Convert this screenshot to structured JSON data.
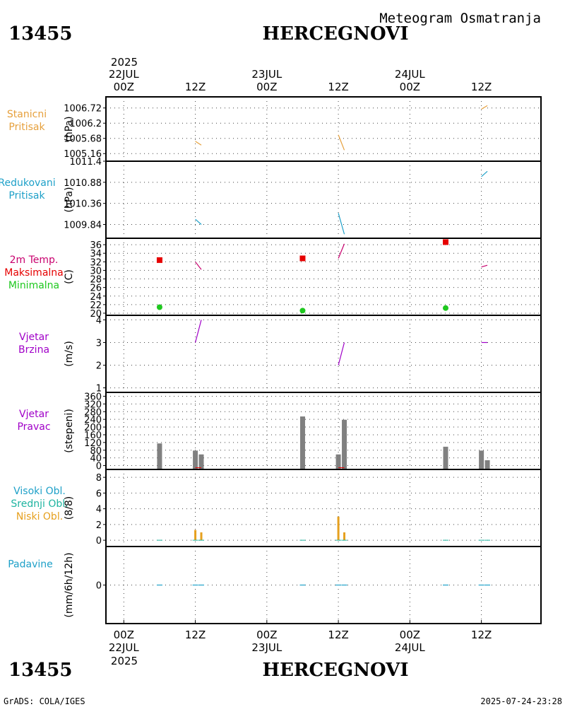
{
  "header": {
    "station_id": "13455",
    "station_name": "HERCEGNOVI",
    "title": "Meteogram Osmatranja"
  },
  "footer": {
    "station_id": "13455",
    "station_name": "HERCEGNOVI",
    "credit": "GrADS: COLA/IGES",
    "timestamp": "2025-07-24-23:28"
  },
  "time_axis": {
    "top_year": "2025",
    "bottom_year": "2025",
    "ticks": [
      {
        "hour": 0,
        "label": "00Z",
        "date": "22JUL"
      },
      {
        "hour": 12,
        "label": "12Z",
        "date": ""
      },
      {
        "hour": 24,
        "label": "00Z",
        "date": "23JUL"
      },
      {
        "hour": 36,
        "label": "12Z",
        "date": ""
      },
      {
        "hour": 48,
        "label": "00Z",
        "date": "24JUL"
      },
      {
        "hour": 60,
        "label": "12Z",
        "date": ""
      }
    ],
    "range_hours": [
      -3,
      70
    ]
  },
  "colors": {
    "station_pressure": "#e6a03c",
    "reduced_pressure": "#1ea0c8",
    "temp_label": "#c8006e",
    "tmax": "#e60000",
    "tmin": "#1ec81e",
    "wind": "#a000c8",
    "wind_dir_bar": "#808080",
    "high_cloud": "#1ea0c8",
    "mid_cloud": "#1eb4a0",
    "low_cloud": "#e6a01e",
    "precip": "#1ea0c8"
  },
  "chart_data": [
    {
      "id": "station_pressure",
      "type": "line",
      "labels": [
        "Stanicni",
        "Pritisak"
      ],
      "ylabel": "(hPa)",
      "ylim": [
        1004.9,
        1007.1
      ],
      "ticks": [
        1006.72,
        1006.2,
        1005.68,
        1005.16
      ],
      "tick_labels": [
        "1006.72",
        "1006.2",
        "1005.68",
        "1005.16"
      ],
      "segments": [
        {
          "x": [
            12,
            13
          ],
          "y": [
            1005.58,
            1005.45
          ]
        },
        {
          "x": [
            36,
            37
          ],
          "y": [
            1005.8,
            1005.28
          ]
        },
        {
          "x": [
            60,
            61
          ],
          "y": [
            1006.68,
            1006.8
          ]
        }
      ]
    },
    {
      "id": "reduced_pressure",
      "type": "line",
      "labels": [
        "Redukovani",
        "Pritisak"
      ],
      "ylabel": "(hPa)",
      "ylim": [
        1009.5,
        1011.4
      ],
      "ticks": [
        1011.4,
        1010.88,
        1010.36,
        1009.84
      ],
      "tick_labels": [
        "1011.4",
        "1010.88",
        "1010.36",
        "1009.84"
      ],
      "segments": [
        {
          "x": [
            12,
            13
          ],
          "y": [
            1009.97,
            1009.84
          ]
        },
        {
          "x": [
            36,
            37
          ],
          "y": [
            1010.12,
            1009.6
          ]
        },
        {
          "x": [
            60,
            61
          ],
          "y": [
            1011.02,
            1011.15
          ]
        }
      ]
    },
    {
      "id": "temperature",
      "type": "scatter",
      "labels": [
        "2m Temp.",
        "Maksimalna",
        "Minimalna"
      ],
      "ylabel": "(C)",
      "ylim": [
        19.5,
        37.5
      ],
      "ticks": [
        20,
        22,
        24,
        26,
        28,
        30,
        32,
        34,
        36
      ],
      "tick_labels": [
        "20",
        "22",
        "24",
        "26",
        "28",
        "30",
        "32",
        "34",
        "36"
      ],
      "tmax": {
        "x": [
          6,
          30,
          54
        ],
        "y": [
          32.4,
          32.8,
          36.6
        ]
      },
      "tmin": {
        "x": [
          6,
          30,
          54
        ],
        "y": [
          21.4,
          20.6,
          21.2
        ]
      },
      "segments": [
        {
          "x": [
            12,
            13
          ],
          "y": [
            32,
            30.2
          ]
        },
        {
          "x": [
            36,
            37
          ],
          "y": [
            32.8,
            36.2
          ]
        },
        {
          "x": [
            60,
            61
          ],
          "y": [
            30.8,
            31.2
          ]
        }
      ]
    },
    {
      "id": "wind_speed",
      "type": "line",
      "labels": [
        "Vjetar",
        "Brzina"
      ],
      "ylabel": "(m/s)",
      "ylim": [
        0.8,
        4.2
      ],
      "ticks": [
        1,
        2,
        3,
        4
      ],
      "tick_labels": [
        "1",
        "2",
        "3",
        "4"
      ],
      "segments": [
        {
          "x": [
            12,
            13
          ],
          "y": [
            3,
            4
          ]
        },
        {
          "x": [
            36,
            37
          ],
          "y": [
            2,
            3
          ]
        },
        {
          "x": [
            60,
            61
          ],
          "y": [
            3,
            3
          ]
        }
      ]
    },
    {
      "id": "wind_direction",
      "type": "bar",
      "labels": [
        "Vjetar",
        "Pravac"
      ],
      "ylabel": "(stepeni)",
      "ylim": [
        -20,
        380
      ],
      "ticks": [
        0,
        40,
        80,
        120,
        160,
        200,
        240,
        280,
        320,
        360
      ],
      "tick_labels": [
        "0",
        "40",
        "80",
        "120",
        "160",
        "200",
        "240",
        "280",
        "320",
        "360"
      ],
      "bars": {
        "x": [
          6,
          12,
          13,
          30,
          36,
          37,
          54,
          60,
          61
        ],
        "values": [
          115,
          78,
          58,
          255,
          58,
          238,
          98,
          78,
          28
        ]
      }
    },
    {
      "id": "clouds",
      "type": "bar",
      "labels": [
        "Visoki Obl.",
        "Srednji Obl.",
        "Niski Obl."
      ],
      "ylabel": "(8/8)",
      "ylim": [
        -0.8,
        9
      ],
      "ticks": [
        0,
        2,
        4,
        6,
        8
      ],
      "tick_labels": [
        "0",
        "2",
        "4",
        "6",
        "8"
      ],
      "low_bars": {
        "x": [
          12,
          13,
          36,
          37
        ],
        "values": [
          1.3,
          1.0,
          3.0,
          1.0
        ]
      }
    },
    {
      "id": "precipitation",
      "type": "line",
      "labels": [
        "Padavine"
      ],
      "ylabel": "(mm/6h/12h)",
      "ylim": [
        -1,
        1
      ],
      "ticks": [
        0
      ],
      "tick_labels": [
        "0"
      ],
      "zero_marks_x": [
        6,
        12,
        13,
        30,
        36,
        37,
        54,
        60,
        61
      ]
    }
  ]
}
